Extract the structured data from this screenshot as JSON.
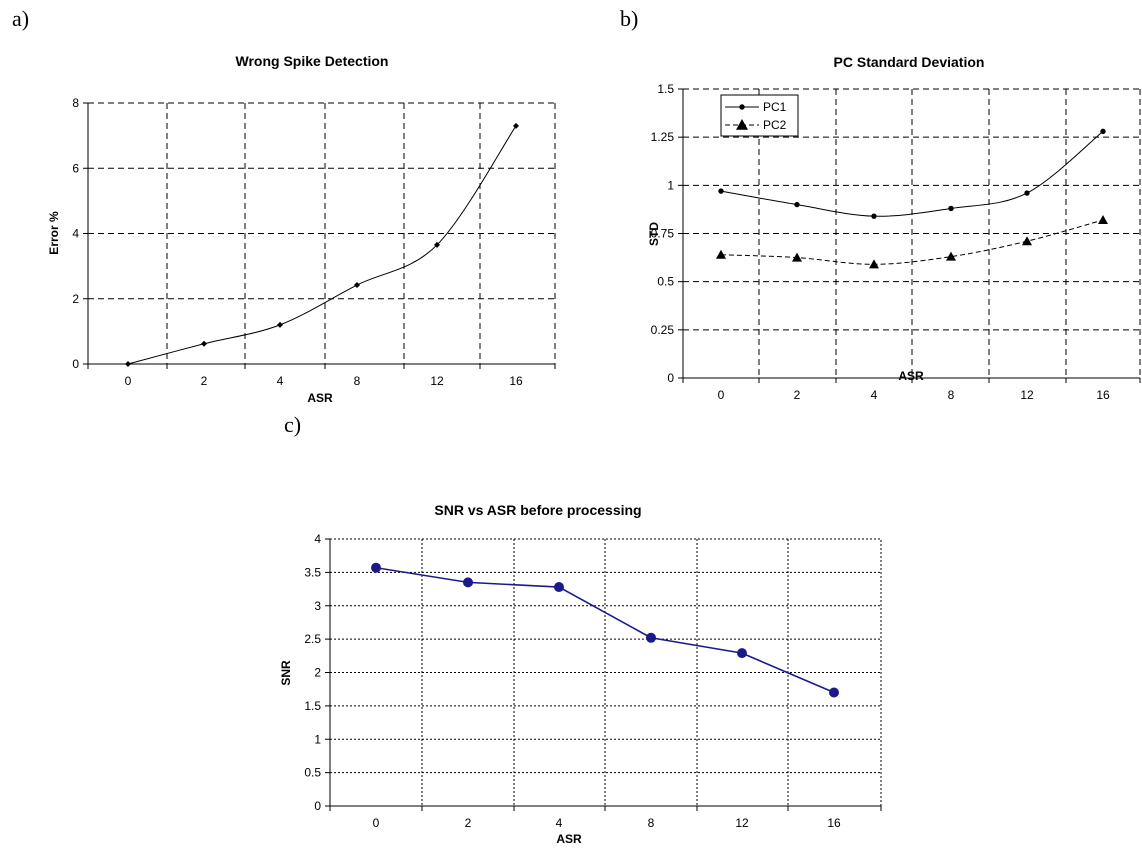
{
  "panels": {
    "a": "a)",
    "b": "b)",
    "c": "c)"
  },
  "chart_data": [
    {
      "type": "line",
      "title": "Wrong Spike Detection",
      "xlabel": "ASR",
      "ylabel": "Error %",
      "categories": [
        "0",
        "2",
        "4",
        "8",
        "12",
        "16"
      ],
      "ylim": [
        0,
        8
      ],
      "yticks": [
        "0",
        "2",
        "4",
        "6",
        "8"
      ],
      "grid": true,
      "series": [
        {
          "values": [
            0,
            0.62,
            1.2,
            2.42,
            3.65,
            7.3
          ],
          "color": "#000000",
          "marker": "diamond",
          "dash": "solid"
        }
      ]
    },
    {
      "type": "line",
      "title": "PC Standard Deviation",
      "xlabel": "ASR",
      "ylabel": "STD",
      "categories": [
        "0",
        "2",
        "4",
        "8",
        "12",
        "16"
      ],
      "ylim": [
        0,
        1.5
      ],
      "yticks": [
        "0",
        "0.25",
        "0.5",
        "0.75",
        "1",
        "1.25",
        "1.5"
      ],
      "grid": true,
      "legend": "top-left",
      "series": [
        {
          "name": "PC1",
          "values": [
            0.97,
            0.9,
            0.84,
            0.88,
            0.96,
            1.28
          ],
          "color": "#000000",
          "marker": "dot",
          "dash": "solid"
        },
        {
          "name": "PC2",
          "values": [
            0.64,
            0.625,
            0.59,
            0.63,
            0.71,
            0.82
          ],
          "color": "#000000",
          "marker": "triangle",
          "dash": "dashed"
        }
      ]
    },
    {
      "type": "line",
      "title": "SNR vs ASR before processing",
      "xlabel": "ASR",
      "ylabel": "SNR",
      "categories": [
        "0",
        "2",
        "4",
        "8",
        "12",
        "16"
      ],
      "ylim": [
        0,
        4
      ],
      "yticks": [
        "0",
        "0.5",
        "1",
        "1.5",
        "2",
        "2.5",
        "3",
        "3.5",
        "4"
      ],
      "grid": true,
      "series": [
        {
          "values": [
            3.57,
            3.35,
            3.28,
            2.52,
            2.29,
            1.7
          ],
          "color": "#1a1a8c",
          "marker": "circle",
          "dash": "solid"
        }
      ]
    }
  ]
}
